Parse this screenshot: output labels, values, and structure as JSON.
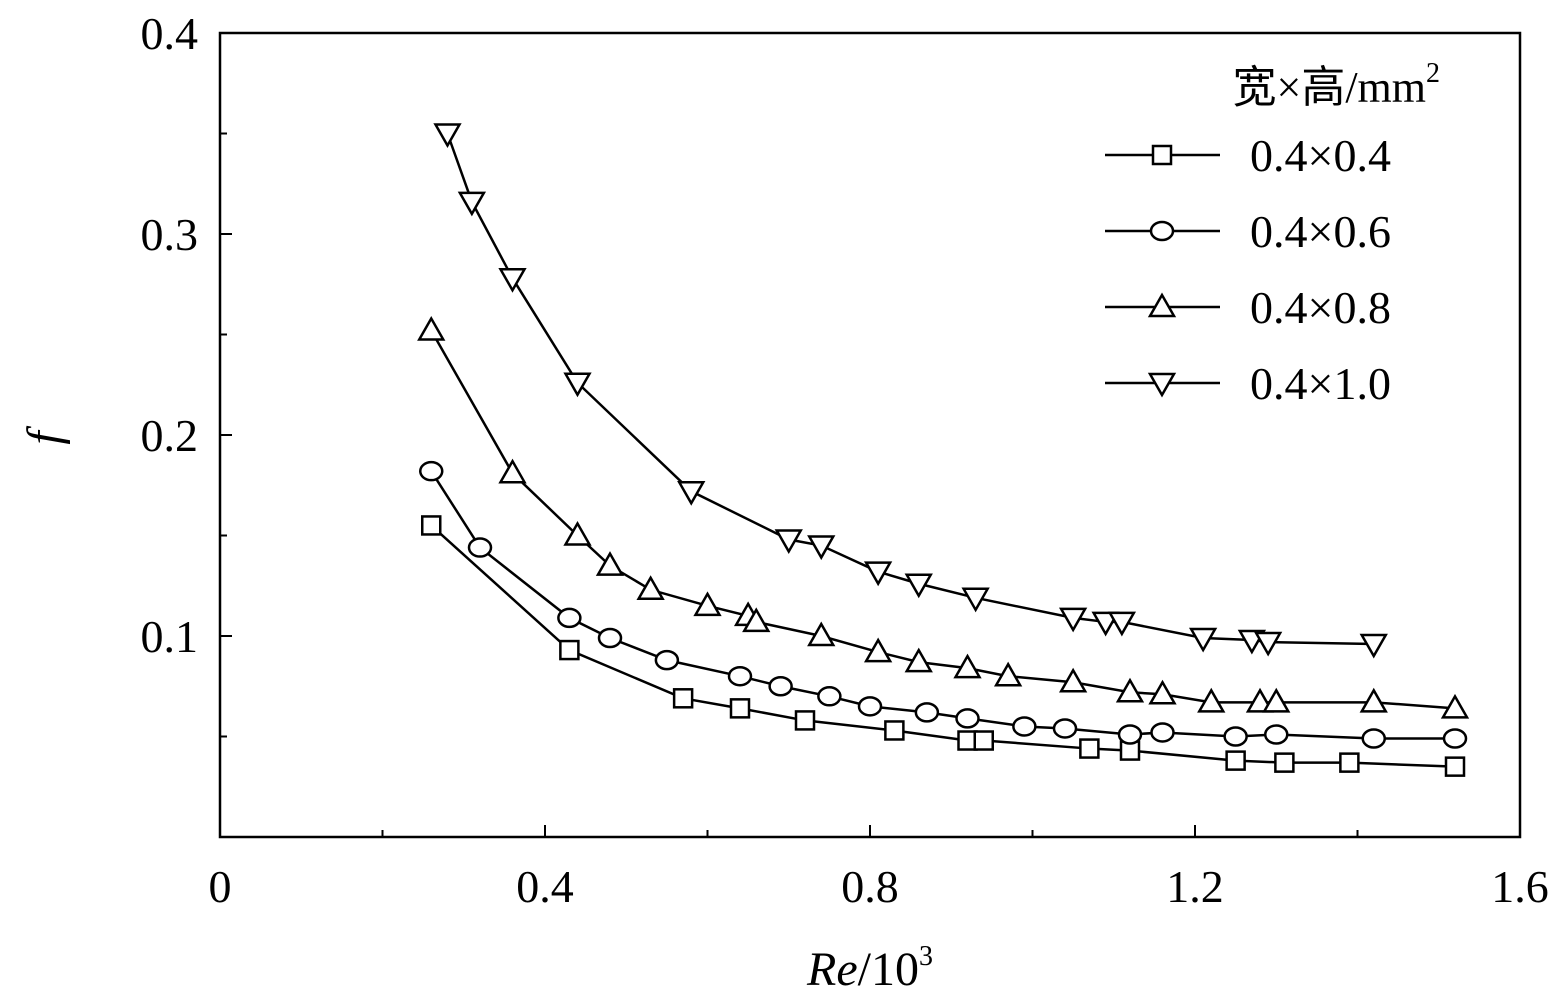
{
  "chart_data": {
    "type": "line",
    "title": "",
    "xlabel_italic": "Re",
    "xlabel_rest": "/10",
    "xlabel_sup": "3",
    "ylabel": "f",
    "xlim": [
      0,
      1.6
    ],
    "ylim": [
      0,
      0.4
    ],
    "x_ticks": [
      0,
      0.4,
      0.8,
      1.2,
      1.6
    ],
    "x_tick_labels": [
      "0",
      "0.4",
      "0.8",
      "1.2",
      "1.6"
    ],
    "y_ticks": [
      0.1,
      0.2,
      0.3,
      0.4
    ],
    "y_tick_labels": [
      "0.1",
      "0.2",
      "0.3",
      "0.4"
    ],
    "x_minor_ticks": [
      0.2,
      0.6,
      1.0,
      1.4
    ],
    "y_minor_ticks": [
      0.05,
      0.15,
      0.25,
      0.35
    ],
    "legend_title": "宽×高/mm",
    "legend_title_sup": "2",
    "legend_position": "top-right",
    "grid": false,
    "series": [
      {
        "name": "0.4×0.4",
        "marker": "square",
        "x": [
          0.26,
          0.43,
          0.57,
          0.64,
          0.72,
          0.83,
          0.92,
          0.94,
          1.07,
          1.12,
          1.25,
          1.31,
          1.39,
          1.52
        ],
        "y": [
          0.155,
          0.093,
          0.069,
          0.064,
          0.058,
          0.053,
          0.048,
          0.048,
          0.044,
          0.043,
          0.038,
          0.037,
          0.037,
          0.035
        ]
      },
      {
        "name": "0.4×0.6",
        "marker": "circle",
        "x": [
          0.26,
          0.32,
          0.43,
          0.48,
          0.55,
          0.64,
          0.69,
          0.75,
          0.8,
          0.87,
          0.92,
          0.99,
          1.04,
          1.12,
          1.16,
          1.25,
          1.3,
          1.42,
          1.52
        ],
        "y": [
          0.182,
          0.144,
          0.109,
          0.099,
          0.088,
          0.08,
          0.075,
          0.07,
          0.065,
          0.062,
          0.059,
          0.055,
          0.054,
          0.051,
          0.052,
          0.05,
          0.051,
          0.049,
          0.049
        ]
      },
      {
        "name": "0.4×0.8",
        "marker": "triangle-up",
        "x": [
          0.26,
          0.36,
          0.44,
          0.48,
          0.53,
          0.6,
          0.65,
          0.66,
          0.74,
          0.81,
          0.86,
          0.92,
          0.97,
          1.05,
          1.12,
          1.16,
          1.22,
          1.28,
          1.3,
          1.42,
          1.52
        ],
        "y": [
          0.252,
          0.181,
          0.15,
          0.135,
          0.123,
          0.115,
          0.11,
          0.107,
          0.1,
          0.092,
          0.087,
          0.084,
          0.08,
          0.077,
          0.072,
          0.071,
          0.067,
          0.067,
          0.067,
          0.067,
          0.064
        ]
      },
      {
        "name": "0.4×1.0",
        "marker": "triangle-down",
        "x": [
          0.28,
          0.31,
          0.36,
          0.44,
          0.58,
          0.7,
          0.74,
          0.81,
          0.86,
          0.93,
          1.05,
          1.09,
          1.11,
          1.21,
          1.27,
          1.29,
          1.42
        ],
        "y": [
          0.35,
          0.316,
          0.278,
          0.226,
          0.172,
          0.148,
          0.145,
          0.132,
          0.126,
          0.119,
          0.109,
          0.107,
          0.107,
          0.099,
          0.098,
          0.097,
          0.096
        ]
      }
    ]
  }
}
